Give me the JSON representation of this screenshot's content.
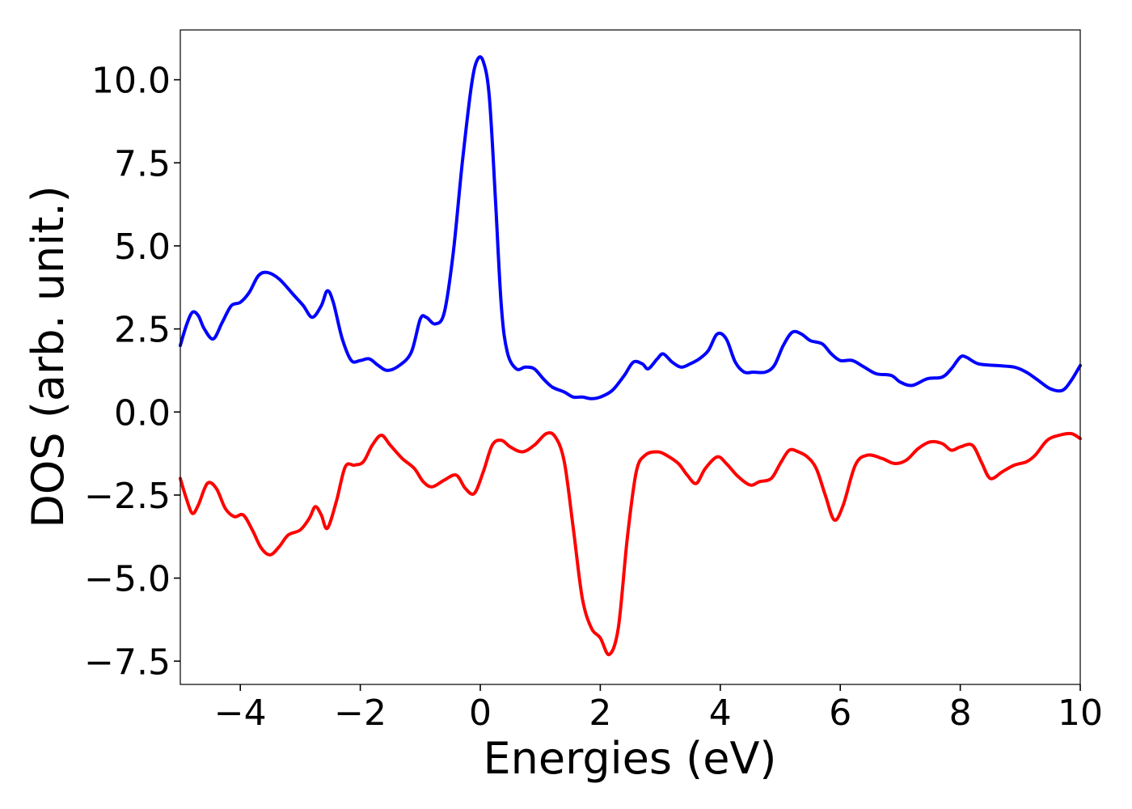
{
  "chart_data": {
    "type": "line",
    "title": "",
    "xlabel": "Energies (eV)",
    "ylabel": "DOS (arb. unit.)",
    "xlim": [
      -5,
      10
    ],
    "ylim": [
      -8.2,
      11.5
    ],
    "grid": false,
    "legend": "none",
    "xticks": [
      -4,
      -2,
      0,
      2,
      4,
      6,
      8,
      10
    ],
    "xtick_labels": [
      "−4",
      "−2",
      "0",
      "2",
      "4",
      "6",
      "8",
      "10"
    ],
    "yticks": [
      10.0,
      7.5,
      5.0,
      2.5,
      0.0,
      -2.5,
      -5.0,
      -7.5
    ],
    "ytick_labels": [
      "10.0",
      "7.5",
      "5.0",
      "2.5",
      "0.0",
      "−2.5",
      "−5.0",
      "−7.5"
    ],
    "series": [
      {
        "color": "#0000ff",
        "points": [
          [
            -5.0,
            2.0
          ],
          [
            -4.9,
            2.6
          ],
          [
            -4.8,
            3.0
          ],
          [
            -4.7,
            2.9
          ],
          [
            -4.6,
            2.5
          ],
          [
            -4.45,
            2.2
          ],
          [
            -4.3,
            2.7
          ],
          [
            -4.15,
            3.2
          ],
          [
            -4.0,
            3.3
          ],
          [
            -3.85,
            3.6
          ],
          [
            -3.7,
            4.1
          ],
          [
            -3.55,
            4.2
          ],
          [
            -3.35,
            4.0
          ],
          [
            -3.1,
            3.5
          ],
          [
            -2.95,
            3.2
          ],
          [
            -2.8,
            2.85
          ],
          [
            -2.65,
            3.2
          ],
          [
            -2.55,
            3.65
          ],
          [
            -2.45,
            3.3
          ],
          [
            -2.3,
            2.2
          ],
          [
            -2.15,
            1.55
          ],
          [
            -2.0,
            1.55
          ],
          [
            -1.85,
            1.6
          ],
          [
            -1.7,
            1.4
          ],
          [
            -1.55,
            1.25
          ],
          [
            -1.35,
            1.4
          ],
          [
            -1.15,
            1.8
          ],
          [
            -1.0,
            2.8
          ],
          [
            -0.9,
            2.85
          ],
          [
            -0.75,
            2.65
          ],
          [
            -0.6,
            3.0
          ],
          [
            -0.45,
            4.8
          ],
          [
            -0.3,
            7.5
          ],
          [
            -0.15,
            9.8
          ],
          [
            -0.05,
            10.6
          ],
          [
            0.05,
            10.55
          ],
          [
            0.15,
            9.5
          ],
          [
            0.25,
            6.5
          ],
          [
            0.35,
            3.2
          ],
          [
            0.45,
            1.8
          ],
          [
            0.6,
            1.3
          ],
          [
            0.75,
            1.35
          ],
          [
            0.9,
            1.3
          ],
          [
            1.05,
            1.0
          ],
          [
            1.2,
            0.75
          ],
          [
            1.4,
            0.6
          ],
          [
            1.55,
            0.45
          ],
          [
            1.7,
            0.45
          ],
          [
            1.85,
            0.4
          ],
          [
            2.0,
            0.45
          ],
          [
            2.2,
            0.65
          ],
          [
            2.4,
            1.1
          ],
          [
            2.55,
            1.5
          ],
          [
            2.7,
            1.45
          ],
          [
            2.8,
            1.3
          ],
          [
            2.95,
            1.6
          ],
          [
            3.05,
            1.75
          ],
          [
            3.2,
            1.5
          ],
          [
            3.35,
            1.35
          ],
          [
            3.5,
            1.45
          ],
          [
            3.65,
            1.6
          ],
          [
            3.8,
            1.85
          ],
          [
            3.95,
            2.35
          ],
          [
            4.1,
            2.2
          ],
          [
            4.25,
            1.5
          ],
          [
            4.4,
            1.2
          ],
          [
            4.55,
            1.2
          ],
          [
            4.75,
            1.2
          ],
          [
            4.9,
            1.4
          ],
          [
            5.05,
            2.0
          ],
          [
            5.2,
            2.4
          ],
          [
            5.35,
            2.35
          ],
          [
            5.5,
            2.15
          ],
          [
            5.7,
            2.05
          ],
          [
            5.85,
            1.75
          ],
          [
            6.0,
            1.55
          ],
          [
            6.2,
            1.55
          ],
          [
            6.4,
            1.35
          ],
          [
            6.6,
            1.15
          ],
          [
            6.85,
            1.1
          ],
          [
            7.0,
            0.9
          ],
          [
            7.2,
            0.8
          ],
          [
            7.45,
            1.0
          ],
          [
            7.7,
            1.05
          ],
          [
            7.85,
            1.3
          ],
          [
            8.0,
            1.65
          ],
          [
            8.1,
            1.65
          ],
          [
            8.3,
            1.45
          ],
          [
            8.6,
            1.4
          ],
          [
            8.9,
            1.35
          ],
          [
            9.1,
            1.2
          ],
          [
            9.3,
            0.95
          ],
          [
            9.5,
            0.7
          ],
          [
            9.7,
            0.65
          ],
          [
            9.85,
            0.95
          ],
          [
            10.0,
            1.4
          ]
        ]
      },
      {
        "color": "#ff0000",
        "points": [
          [
            -5.0,
            -2.0
          ],
          [
            -4.9,
            -2.6
          ],
          [
            -4.8,
            -3.05
          ],
          [
            -4.7,
            -2.8
          ],
          [
            -4.55,
            -2.15
          ],
          [
            -4.4,
            -2.3
          ],
          [
            -4.25,
            -2.9
          ],
          [
            -4.1,
            -3.15
          ],
          [
            -3.95,
            -3.1
          ],
          [
            -3.8,
            -3.55
          ],
          [
            -3.65,
            -4.1
          ],
          [
            -3.5,
            -4.3
          ],
          [
            -3.35,
            -4.05
          ],
          [
            -3.2,
            -3.7
          ],
          [
            -3.0,
            -3.55
          ],
          [
            -2.85,
            -3.2
          ],
          [
            -2.75,
            -2.85
          ],
          [
            -2.65,
            -3.1
          ],
          [
            -2.55,
            -3.5
          ],
          [
            -2.4,
            -2.7
          ],
          [
            -2.25,
            -1.65
          ],
          [
            -2.1,
            -1.6
          ],
          [
            -1.95,
            -1.5
          ],
          [
            -1.8,
            -1.0
          ],
          [
            -1.65,
            -0.7
          ],
          [
            -1.5,
            -1.0
          ],
          [
            -1.3,
            -1.4
          ],
          [
            -1.1,
            -1.7
          ],
          [
            -0.95,
            -2.1
          ],
          [
            -0.8,
            -2.25
          ],
          [
            -0.6,
            -2.05
          ],
          [
            -0.4,
            -1.9
          ],
          [
            -0.25,
            -2.3
          ],
          [
            -0.1,
            -2.45
          ],
          [
            0.05,
            -1.8
          ],
          [
            0.2,
            -1.0
          ],
          [
            0.35,
            -0.85
          ],
          [
            0.5,
            -1.05
          ],
          [
            0.7,
            -1.2
          ],
          [
            0.9,
            -1.0
          ],
          [
            1.1,
            -0.65
          ],
          [
            1.25,
            -0.75
          ],
          [
            1.4,
            -1.5
          ],
          [
            1.55,
            -3.5
          ],
          [
            1.7,
            -5.6
          ],
          [
            1.85,
            -6.5
          ],
          [
            2.0,
            -6.8
          ],
          [
            2.15,
            -7.3
          ],
          [
            2.3,
            -6.5
          ],
          [
            2.45,
            -3.8
          ],
          [
            2.6,
            -1.8
          ],
          [
            2.75,
            -1.3
          ],
          [
            2.95,
            -1.2
          ],
          [
            3.1,
            -1.3
          ],
          [
            3.3,
            -1.55
          ],
          [
            3.45,
            -1.9
          ],
          [
            3.6,
            -2.15
          ],
          [
            3.75,
            -1.7
          ],
          [
            3.95,
            -1.35
          ],
          [
            4.1,
            -1.55
          ],
          [
            4.3,
            -1.95
          ],
          [
            4.5,
            -2.2
          ],
          [
            4.65,
            -2.1
          ],
          [
            4.85,
            -2.0
          ],
          [
            5.0,
            -1.55
          ],
          [
            5.15,
            -1.15
          ],
          [
            5.3,
            -1.2
          ],
          [
            5.45,
            -1.35
          ],
          [
            5.6,
            -1.7
          ],
          [
            5.75,
            -2.5
          ],
          [
            5.9,
            -3.25
          ],
          [
            6.05,
            -2.8
          ],
          [
            6.25,
            -1.6
          ],
          [
            6.45,
            -1.3
          ],
          [
            6.7,
            -1.4
          ],
          [
            6.9,
            -1.55
          ],
          [
            7.1,
            -1.45
          ],
          [
            7.3,
            -1.1
          ],
          [
            7.5,
            -0.9
          ],
          [
            7.7,
            -0.95
          ],
          [
            7.85,
            -1.15
          ],
          [
            8.0,
            -1.05
          ],
          [
            8.2,
            -1.0
          ],
          [
            8.35,
            -1.5
          ],
          [
            8.5,
            -2.0
          ],
          [
            8.7,
            -1.8
          ],
          [
            8.9,
            -1.6
          ],
          [
            9.1,
            -1.5
          ],
          [
            9.25,
            -1.3
          ],
          [
            9.45,
            -0.85
          ],
          [
            9.65,
            -0.7
          ],
          [
            9.85,
            -0.65
          ],
          [
            10.0,
            -0.8
          ]
        ]
      }
    ]
  }
}
